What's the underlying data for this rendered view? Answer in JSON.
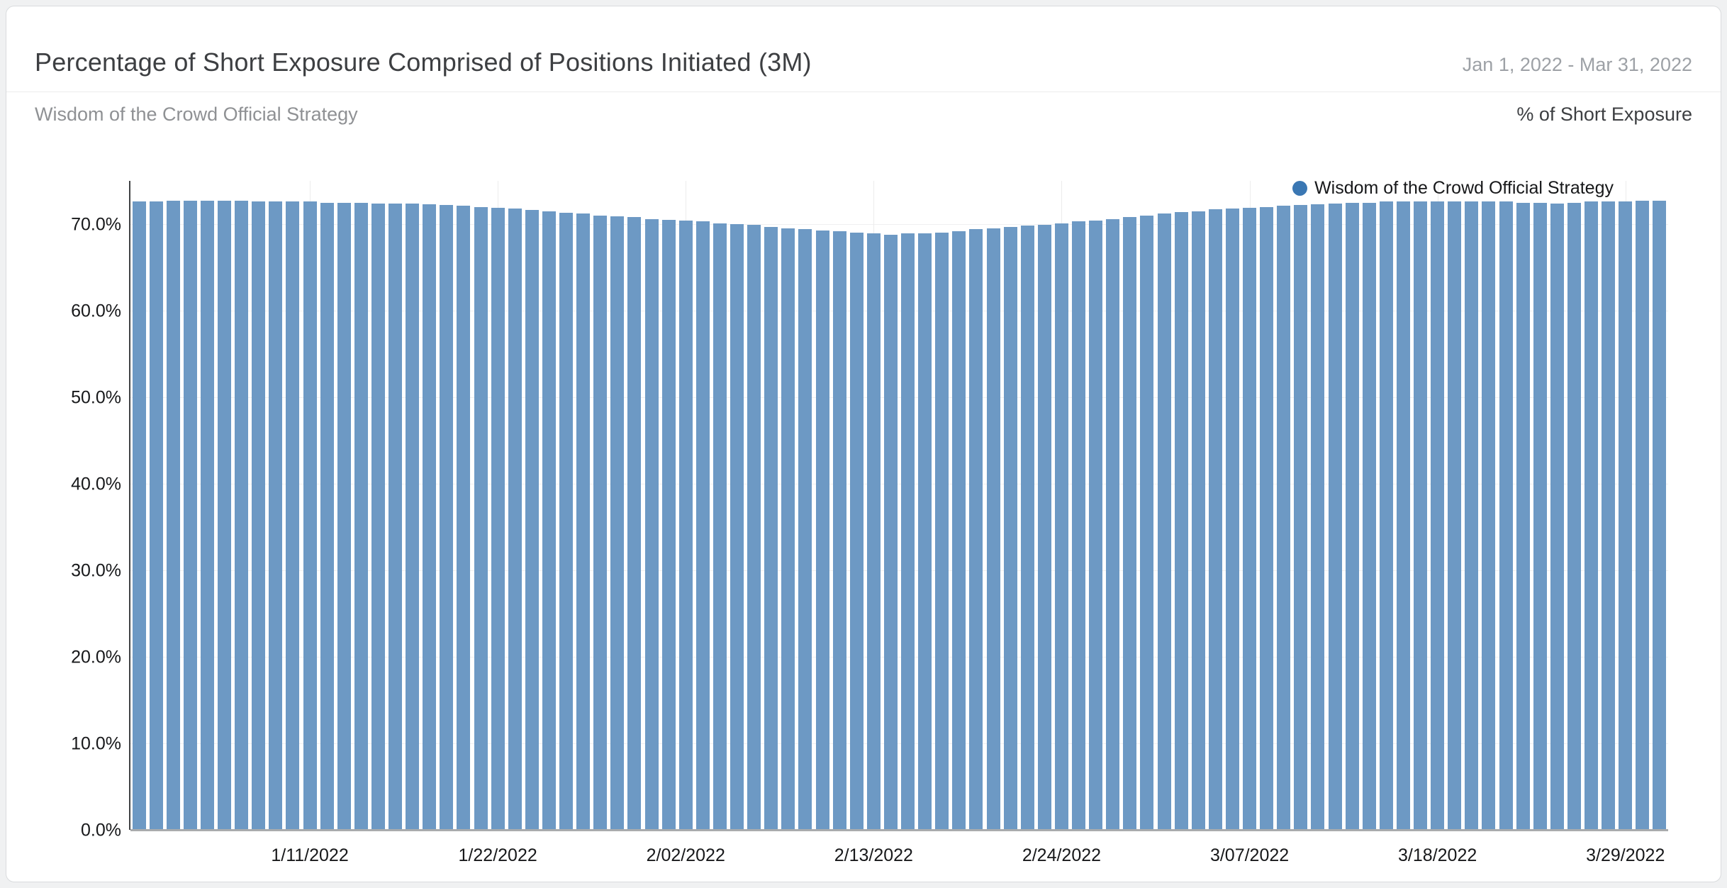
{
  "header": {
    "title": "Percentage of Short Exposure Comprised of Positions Initiated (3M)",
    "date_range": "Jan 1, 2022 - Mar 31, 2022",
    "subtitle": "Wisdom of the Crowd Official Strategy",
    "axis_unit_label": "% of Short Exposure"
  },
  "legend": {
    "label": "Wisdom of the Crowd Official Strategy",
    "dot_color": "#3a77b3"
  },
  "colors": {
    "bar": "#6d99c4",
    "page_background": "#f0f1f2",
    "card_background": "#ffffff",
    "axis_line": "#414345",
    "baseline": "#a9abad"
  },
  "chart_data": {
    "type": "bar",
    "title": "Percentage of Short Exposure Comprised of Positions Initiated (3M)",
    "series_name": "Wisdom of the Crowd Official Strategy",
    "ylabel": "% of Short Exposure",
    "ylim": [
      0,
      75
    ],
    "grid": true,
    "legend_position": "top-right",
    "y_ticks": [
      {
        "value": 0,
        "label": "0.0%"
      },
      {
        "value": 10,
        "label": "10.0%"
      },
      {
        "value": 20,
        "label": "20.0%"
      },
      {
        "value": 30,
        "label": "30.0%"
      },
      {
        "value": 40,
        "label": "40.0%"
      },
      {
        "value": 50,
        "label": "50.0%"
      },
      {
        "value": 60,
        "label": "60.0%"
      },
      {
        "value": 70,
        "label": "70.0%"
      }
    ],
    "x_ticks": [
      {
        "index": 10,
        "label": "1/11/2022"
      },
      {
        "index": 21,
        "label": "1/22/2022"
      },
      {
        "index": 32,
        "label": "2/02/2022"
      },
      {
        "index": 43,
        "label": "2/13/2022"
      },
      {
        "index": 54,
        "label": "2/24/2022"
      },
      {
        "index": 65,
        "label": "3/07/2022"
      },
      {
        "index": 76,
        "label": "3/18/2022"
      },
      {
        "index": 87,
        "label": "3/29/2022"
      }
    ],
    "x": [
      "1/1/2022",
      "1/2/2022",
      "1/3/2022",
      "1/4/2022",
      "1/5/2022",
      "1/6/2022",
      "1/7/2022",
      "1/8/2022",
      "1/9/2022",
      "1/10/2022",
      "1/11/2022",
      "1/12/2022",
      "1/13/2022",
      "1/14/2022",
      "1/15/2022",
      "1/16/2022",
      "1/17/2022",
      "1/18/2022",
      "1/19/2022",
      "1/20/2022",
      "1/21/2022",
      "1/22/2022",
      "1/23/2022",
      "1/24/2022",
      "1/25/2022",
      "1/26/2022",
      "1/27/2022",
      "1/28/2022",
      "1/29/2022",
      "1/30/2022",
      "1/31/2022",
      "2/1/2022",
      "2/2/2022",
      "2/3/2022",
      "2/4/2022",
      "2/5/2022",
      "2/6/2022",
      "2/7/2022",
      "2/8/2022",
      "2/9/2022",
      "2/10/2022",
      "2/11/2022",
      "2/12/2022",
      "2/13/2022",
      "2/14/2022",
      "2/15/2022",
      "2/16/2022",
      "2/17/2022",
      "2/18/2022",
      "2/19/2022",
      "2/20/2022",
      "2/21/2022",
      "2/22/2022",
      "2/23/2022",
      "2/24/2022",
      "2/25/2022",
      "2/26/2022",
      "2/27/2022",
      "2/28/2022",
      "3/1/2022",
      "3/2/2022",
      "3/3/2022",
      "3/4/2022",
      "3/5/2022",
      "3/6/2022",
      "3/7/2022",
      "3/8/2022",
      "3/9/2022",
      "3/10/2022",
      "3/11/2022",
      "3/12/2022",
      "3/13/2022",
      "3/14/2022",
      "3/15/2022",
      "3/16/2022",
      "3/17/2022",
      "3/18/2022",
      "3/19/2022",
      "3/20/2022",
      "3/21/2022",
      "3/22/2022",
      "3/23/2022",
      "3/24/2022",
      "3/25/2022",
      "3/26/2022",
      "3/27/2022",
      "3/28/2022",
      "3/29/2022",
      "3/30/2022",
      "3/31/2022"
    ],
    "values": [
      72.6,
      72.6,
      72.7,
      72.7,
      72.7,
      72.7,
      72.7,
      72.6,
      72.6,
      72.6,
      72.6,
      72.5,
      72.5,
      72.5,
      72.4,
      72.4,
      72.4,
      72.3,
      72.2,
      72.1,
      72.0,
      71.9,
      71.8,
      71.6,
      71.5,
      71.3,
      71.2,
      71.0,
      70.9,
      70.8,
      70.6,
      70.5,
      70.4,
      70.3,
      70.1,
      70.0,
      69.9,
      69.7,
      69.5,
      69.4,
      69.3,
      69.2,
      69.0,
      68.9,
      68.8,
      68.9,
      68.9,
      69.0,
      69.2,
      69.4,
      69.5,
      69.7,
      69.8,
      69.9,
      70.1,
      70.3,
      70.4,
      70.6,
      70.8,
      71.0,
      71.2,
      71.4,
      71.5,
      71.7,
      71.8,
      71.9,
      72.0,
      72.1,
      72.2,
      72.3,
      72.4,
      72.5,
      72.5,
      72.6,
      72.6,
      72.6,
      72.6,
      72.6,
      72.6,
      72.6,
      72.6,
      72.5,
      72.5,
      72.4,
      72.5,
      72.6,
      72.6,
      72.6,
      72.7,
      72.7
    ]
  }
}
